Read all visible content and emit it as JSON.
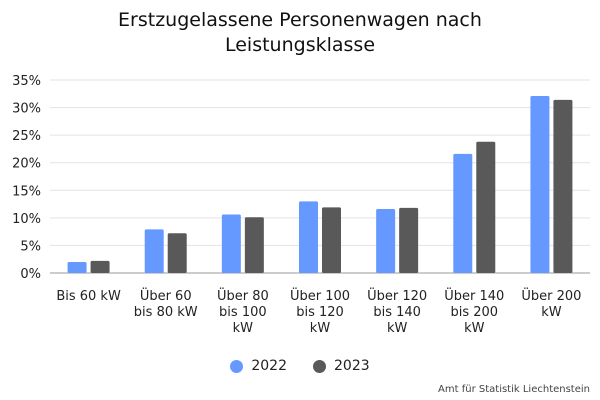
{
  "chart_data": {
    "type": "bar",
    "title_lines": [
      "Erstzugelassene Personenwagen nach",
      "Leistungsklasse"
    ],
    "categories": [
      [
        "Bis 60 kW"
      ],
      [
        "Über 60",
        "bis 80 kW"
      ],
      [
        "Über 80",
        "bis 100",
        "kW"
      ],
      [
        "Über 100",
        "bis 120",
        "kW"
      ],
      [
        "Über 120",
        "bis 140",
        "kW"
      ],
      [
        "Über 140",
        "bis 200",
        "kW"
      ],
      [
        "Über 200",
        "kW"
      ]
    ],
    "series": [
      {
        "name": "2022",
        "color": "#6699ff",
        "values": [
          2.0,
          7.9,
          10.6,
          13.0,
          11.6,
          21.6,
          32.1
        ]
      },
      {
        "name": "2023",
        "color": "#595959",
        "values": [
          2.2,
          7.2,
          10.1,
          11.9,
          11.8,
          23.8,
          31.4
        ]
      }
    ],
    "ylim": [
      0,
      35
    ],
    "yticks": [
      "0%",
      "5%",
      "10%",
      "15%",
      "20%",
      "25%",
      "30%",
      "35%"
    ],
    "ytick_values": [
      0,
      5,
      10,
      15,
      20,
      25,
      30,
      35
    ],
    "grid": true,
    "legend_position": "bottom-center"
  },
  "source": "Amt für Statistik Liechtenstein"
}
